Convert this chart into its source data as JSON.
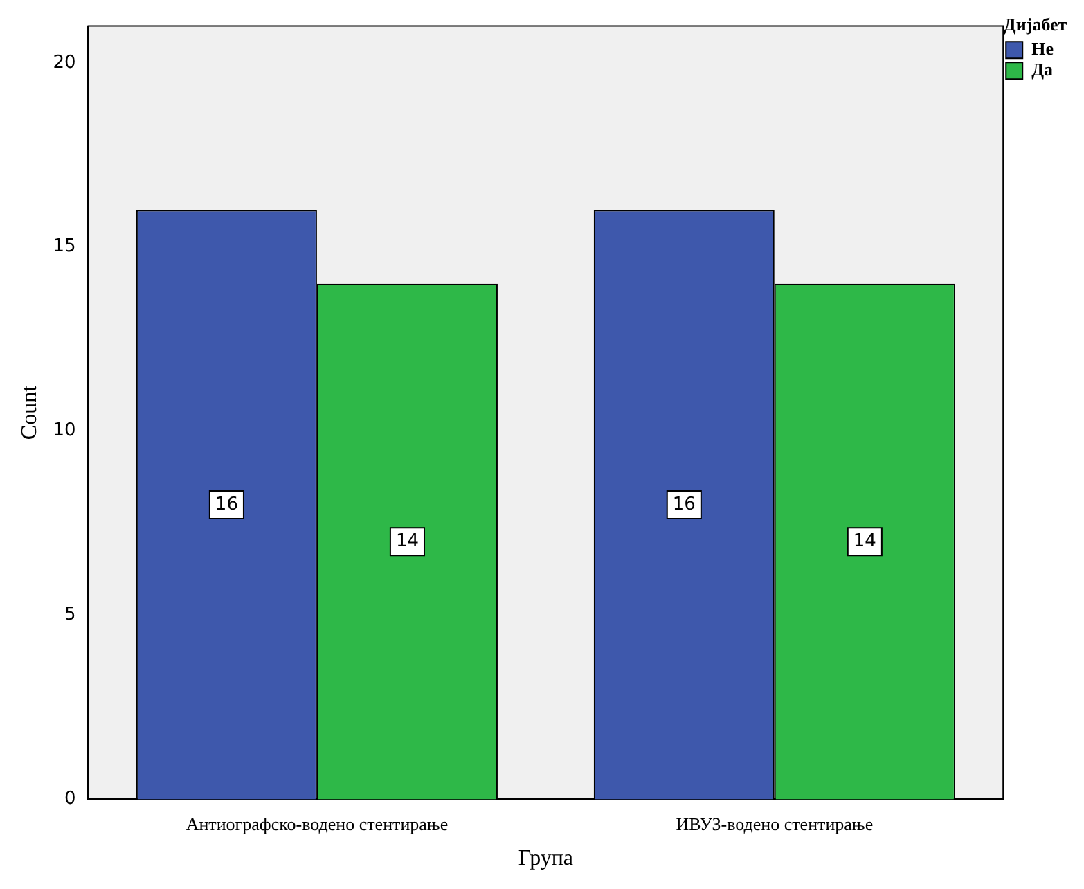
{
  "chart_data": {
    "type": "bar",
    "xlabel": "Група",
    "ylabel": "Count",
    "legend_title": "Дијабет",
    "categories": [
      "Антиографско-водено стентирање",
      "ИВУЗ-водено стентирање"
    ],
    "series": [
      {
        "name": "Не",
        "color": "#3e58ac",
        "values": [
          16,
          16
        ]
      },
      {
        "name": "Да",
        "color": "#2eb848",
        "values": [
          14,
          14
        ]
      }
    ],
    "ylim": [
      0,
      21
    ],
    "yticks": [
      0,
      5,
      10,
      15,
      20
    ],
    "grid": false,
    "legend": "top right",
    "data_labels": true
  }
}
